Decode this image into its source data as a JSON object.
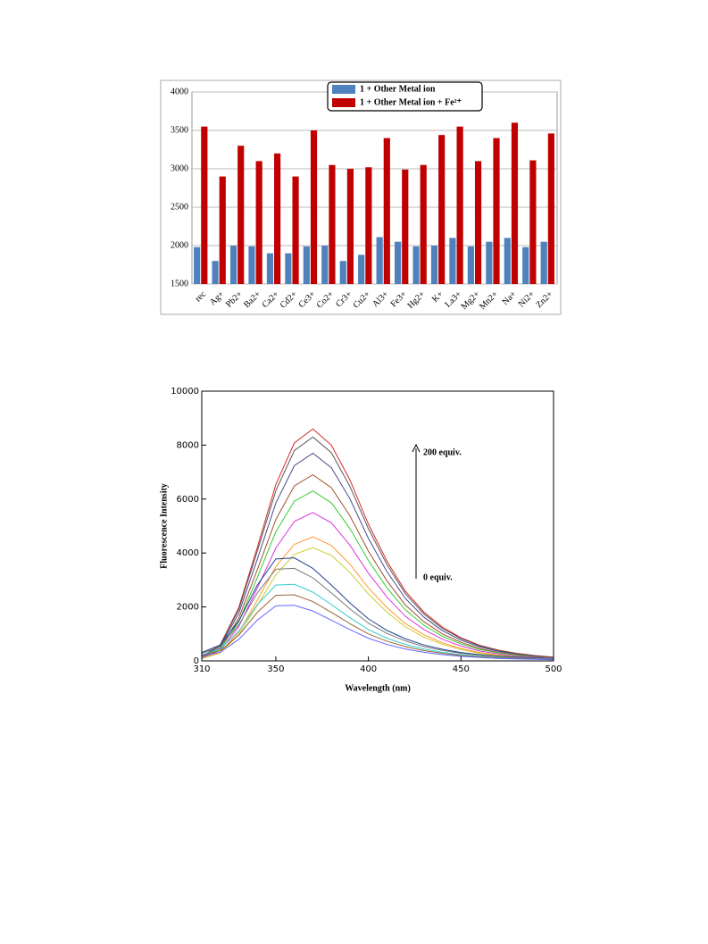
{
  "chart_data": [
    {
      "type": "bar",
      "categories": [
        "rec",
        "Ag+",
        "Pb2+",
        "Ba2+",
        "Ca2+",
        "Cd2+",
        "Ce3+",
        "Co2+",
        "Cr3+",
        "Cu2+",
        "Al3+",
        "Fe3+",
        "Hg2+",
        "K+",
        "La3+",
        "Mg2+",
        "Mn2+",
        "Na+",
        "Ni2+",
        "Zn2+"
      ],
      "series": [
        {
          "name": "1 + Other Metal ion",
          "color": "#4f81bd",
          "values": [
            1980,
            1800,
            2000,
            1990,
            1900,
            1900,
            1990,
            2000,
            1800,
            1880,
            2110,
            2050,
            1990,
            2000,
            2100,
            1990,
            2050,
            2100,
            1980,
            2050
          ]
        },
        {
          "name": "1 + Other Metal ion + Fe²⁺",
          "color": "#c00000",
          "values": [
            3550,
            2900,
            3300,
            3100,
            3200,
            2900,
            3500,
            3050,
            3000,
            3020,
            3400,
            2990,
            3050,
            3440,
            3550,
            3100,
            3400,
            3600,
            3110,
            3460
          ]
        }
      ],
      "ylim": [
        1500,
        4000
      ],
      "yticks": [
        1500,
        2000,
        2500,
        3000,
        3500,
        4000
      ],
      "grid": true,
      "legend": "top-right"
    },
    {
      "type": "line",
      "x_label": "Wavelength (nm)",
      "y_label": "Fluorescence Intensity",
      "annotations": [
        "200 equiv.",
        "0 equiv."
      ],
      "x": [
        310,
        320,
        330,
        340,
        350,
        360,
        370,
        380,
        390,
        400,
        410,
        420,
        430,
        440,
        450,
        460,
        470,
        480,
        490,
        500
      ],
      "xlim": [
        310,
        500
      ],
      "xticks": [
        310,
        350,
        400,
        450,
        500
      ],
      "ylim": [
        0,
        10000
      ],
      "yticks": [
        0,
        2000,
        4000,
        6000,
        8000,
        10000
      ],
      "series": [
        {
          "color": "#d62728",
          "values": [
            170,
            600,
            1980,
            4210,
            6540,
            8080,
            8600,
            8000,
            6710,
            5070,
            3700,
            2580,
            1810,
            1250,
            860,
            580,
            400,
            280,
            200,
            140
          ]
        },
        {
          "color": "#555555",
          "values": [
            170,
            580,
            1910,
            4070,
            6310,
            7800,
            8300,
            7720,
            6470,
            4900,
            3570,
            2490,
            1740,
            1200,
            830,
            560,
            390,
            270,
            190,
            130
          ]
        },
        {
          "color": "#4a4a8c",
          "values": [
            150,
            540,
            1770,
            3770,
            5850,
            7240,
            7700,
            7160,
            6010,
            4540,
            3310,
            2310,
            1620,
            1120,
            770,
            520,
            360,
            250,
            180,
            120
          ]
        },
        {
          "color": "#a0522d",
          "values": [
            140,
            480,
            1590,
            3380,
            5240,
            6490,
            6900,
            6420,
            5380,
            4070,
            2970,
            2070,
            1450,
            1000,
            690,
            460,
            320,
            230,
            160,
            110
          ]
        },
        {
          "color": "#33cc33",
          "values": [
            130,
            440,
            1450,
            3090,
            4790,
            5920,
            6300,
            5860,
            4910,
            3720,
            2710,
            1890,
            1320,
            910,
            630,
            420,
            300,
            210,
            140,
            100
          ]
        },
        {
          "color": "#dd33dd",
          "values": [
            110,
            390,
            1270,
            2700,
            4180,
            5170,
            5500,
            5120,
            4290,
            3250,
            2370,
            1650,
            1160,
            800,
            550,
            370,
            260,
            180,
            130,
            90
          ]
        },
        {
          "color": "#ff9933",
          "values": [
            90,
            320,
            1060,
            2250,
            3500,
            4320,
            4600,
            4280,
            3590,
            2710,
            1980,
            1380,
            970,
            670,
            460,
            310,
            220,
            150,
            110,
            70
          ]
        },
        {
          "color": "#cccc33",
          "values": [
            80,
            290,
            970,
            2060,
            3190,
            3950,
            4200,
            3910,
            3280,
            2480,
            1810,
            1260,
            880,
            610,
            420,
            280,
            200,
            140,
            100,
            70
          ]
        },
        {
          "color": "#1f3f8f",
          "values": [
            310,
            590,
            1480,
            2810,
            3780,
            3820,
            3430,
            2810,
            2150,
            1560,
            1130,
            820,
            590,
            430,
            310,
            230,
            180,
            140,
            110,
            80
          ]
        },
        {
          "color": "#777777",
          "values": [
            280,
            530,
            1330,
            2520,
            3400,
            3430,
            3080,
            2520,
            1930,
            1400,
            1020,
            740,
            530,
            390,
            280,
            210,
            160,
            120,
            90,
            70
          ]
        },
        {
          "color": "#33cccc",
          "values": [
            230,
            440,
            1100,
            2090,
            2810,
            2840,
            2550,
            2090,
            1600,
            1160,
            840,
            610,
            440,
            320,
            230,
            170,
            130,
            100,
            80,
            60
          ]
        },
        {
          "color": "#996633",
          "values": [
            200,
            380,
            950,
            1800,
            2430,
            2450,
            2200,
            1800,
            1380,
            1000,
            730,
            530,
            380,
            280,
            200,
            150,
            110,
            90,
            70,
            50
          ]
        },
        {
          "color": "#6666ff",
          "values": [
            170,
            320,
            800,
            1510,
            2040,
            2060,
            1850,
            1510,
            1160,
            840,
            610,
            440,
            320,
            230,
            170,
            130,
            90,
            70,
            60,
            40
          ]
        }
      ]
    }
  ]
}
